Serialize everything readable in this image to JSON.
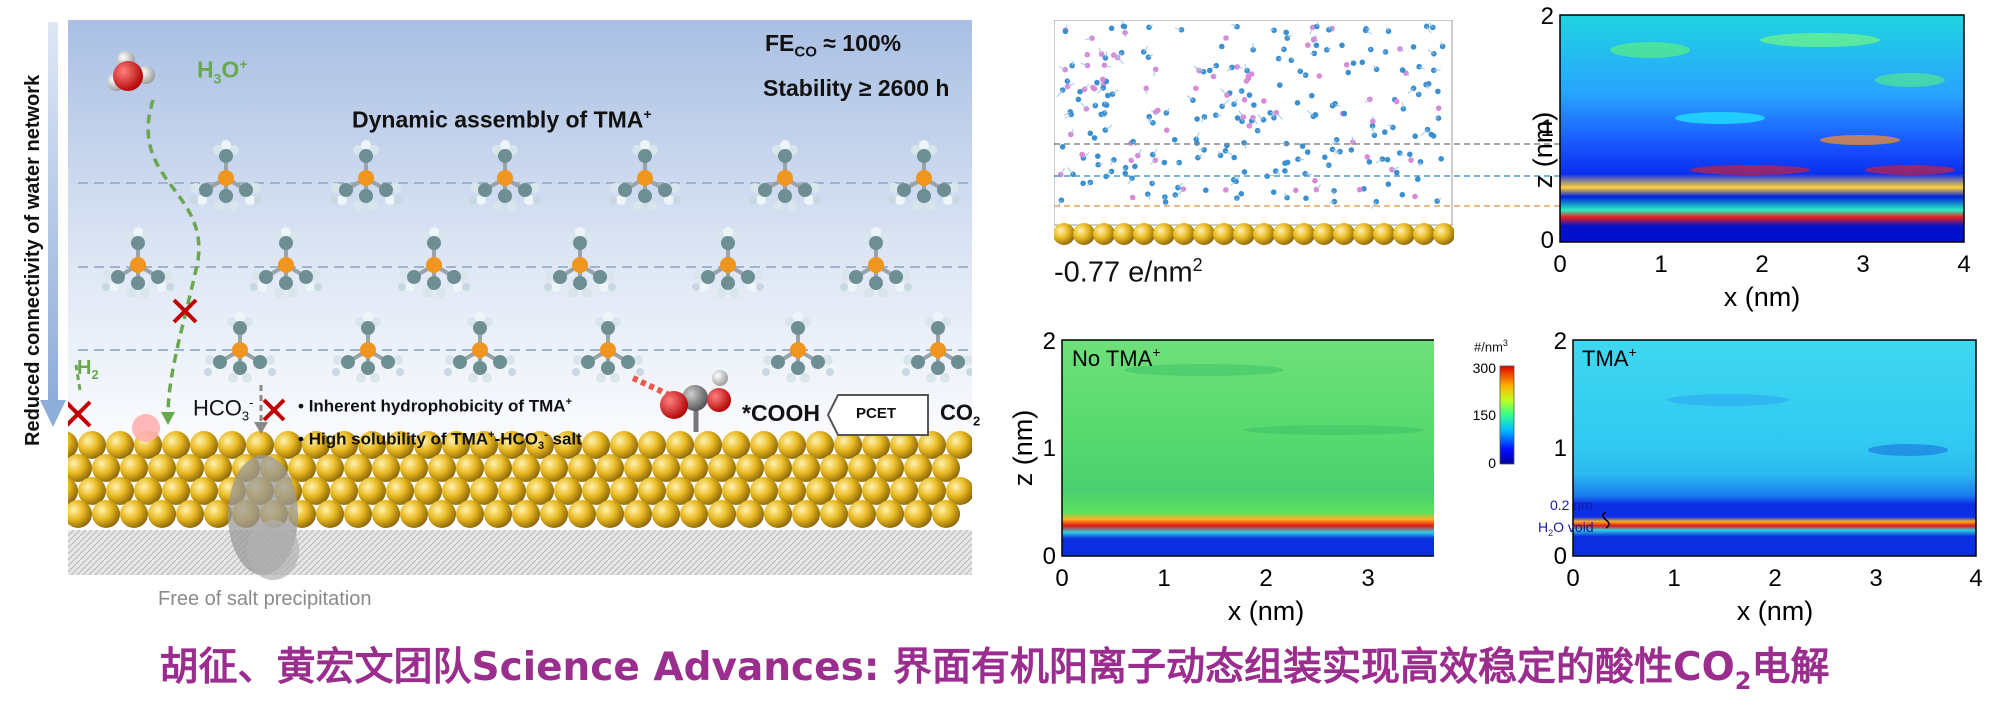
{
  "colors": {
    "headline": "#9b2d8f",
    "h3o": "#6aa84f",
    "cross": "#c00000",
    "gold": "#e8b820",
    "tma_center": "#f0961e",
    "void_label": "#1a1aa8"
  },
  "schematic": {
    "side_label": "Reduced connectivity of water network",
    "fe_label": "FE",
    "fe_sub": "CO",
    "fe_value": " ≈ 100%",
    "stability": "Stability ≥ 2600 h",
    "assembly_pre": "Dynamic assembly of TMA",
    "assembly_sup": "+",
    "h3o_pre": "H",
    "h3o_sub": "3",
    "h3o_post": "O",
    "h3o_sup": "+",
    "h2_pre": "H",
    "h2_sub": "2",
    "hco3_pre": "HCO",
    "hco3_sub": "3",
    "hco3_sup": "-",
    "bullet1_pre": "Inherent hydrophobicity of TMA",
    "bullet1_sup": "+",
    "bullet2_pre": "High solubility of TMA",
    "bullet2_sup": "+",
    "bullet2_mid": "-HCO",
    "bullet2_sub": "3",
    "bullet2_sup2": "-",
    "bullet2_post": " salt",
    "cooh": "*COOH",
    "pcet": "PCET",
    "co2_pre": "CO",
    "co2_sub": "2",
    "salt": "Free of salt precipitation"
  },
  "md_snapshot": {
    "charge_label_pre": "-0.77 e/nm",
    "charge_label_sup": "2"
  },
  "density_maps": [
    {
      "label_pre": "",
      "label_sup": "",
      "xlabel": "x (nm)",
      "ylabel": "z (nm)",
      "xticks": [
        "0",
        "1",
        "2",
        "3",
        "4"
      ],
      "yticks": [
        "0",
        "1",
        "2"
      ],
      "x_range": [
        0,
        4
      ],
      "z_range": [
        0,
        2
      ]
    },
    {
      "label_pre": "No TMA",
      "label_sup": "+",
      "xlabel": "x (nm)",
      "ylabel": "z (nm)",
      "xticks": [
        "0",
        "1",
        "2",
        "3",
        "4"
      ],
      "yticks": [
        "0",
        "1",
        "2"
      ],
      "x_range": [
        0,
        4
      ],
      "z_range": [
        0,
        2
      ]
    },
    {
      "label_pre": "TMA",
      "label_sup": "+",
      "xlabel": "x (nm)",
      "ylabel": "",
      "xticks": [
        "0",
        "1",
        "2",
        "3",
        "4"
      ],
      "yticks": [
        "0",
        "1",
        "2"
      ],
      "x_range": [
        0,
        4
      ],
      "z_range": [
        0,
        2
      ]
    }
  ],
  "colorbar": {
    "unit_pre": "#/nm",
    "unit_sup": "3",
    "ticks": [
      "300",
      "150",
      "0"
    ],
    "range": [
      0,
      300
    ]
  },
  "annotation": {
    "void_size": "0.2 nm",
    "void_pre": "H",
    "void_sub": "2",
    "void_post": "O void"
  },
  "headline": {
    "pre": "胡征、黄宏文团队Science Advances: 界面有机阳离子动态组装实现高效稳定的酸性CO",
    "sub": "2",
    "post": "电解"
  }
}
